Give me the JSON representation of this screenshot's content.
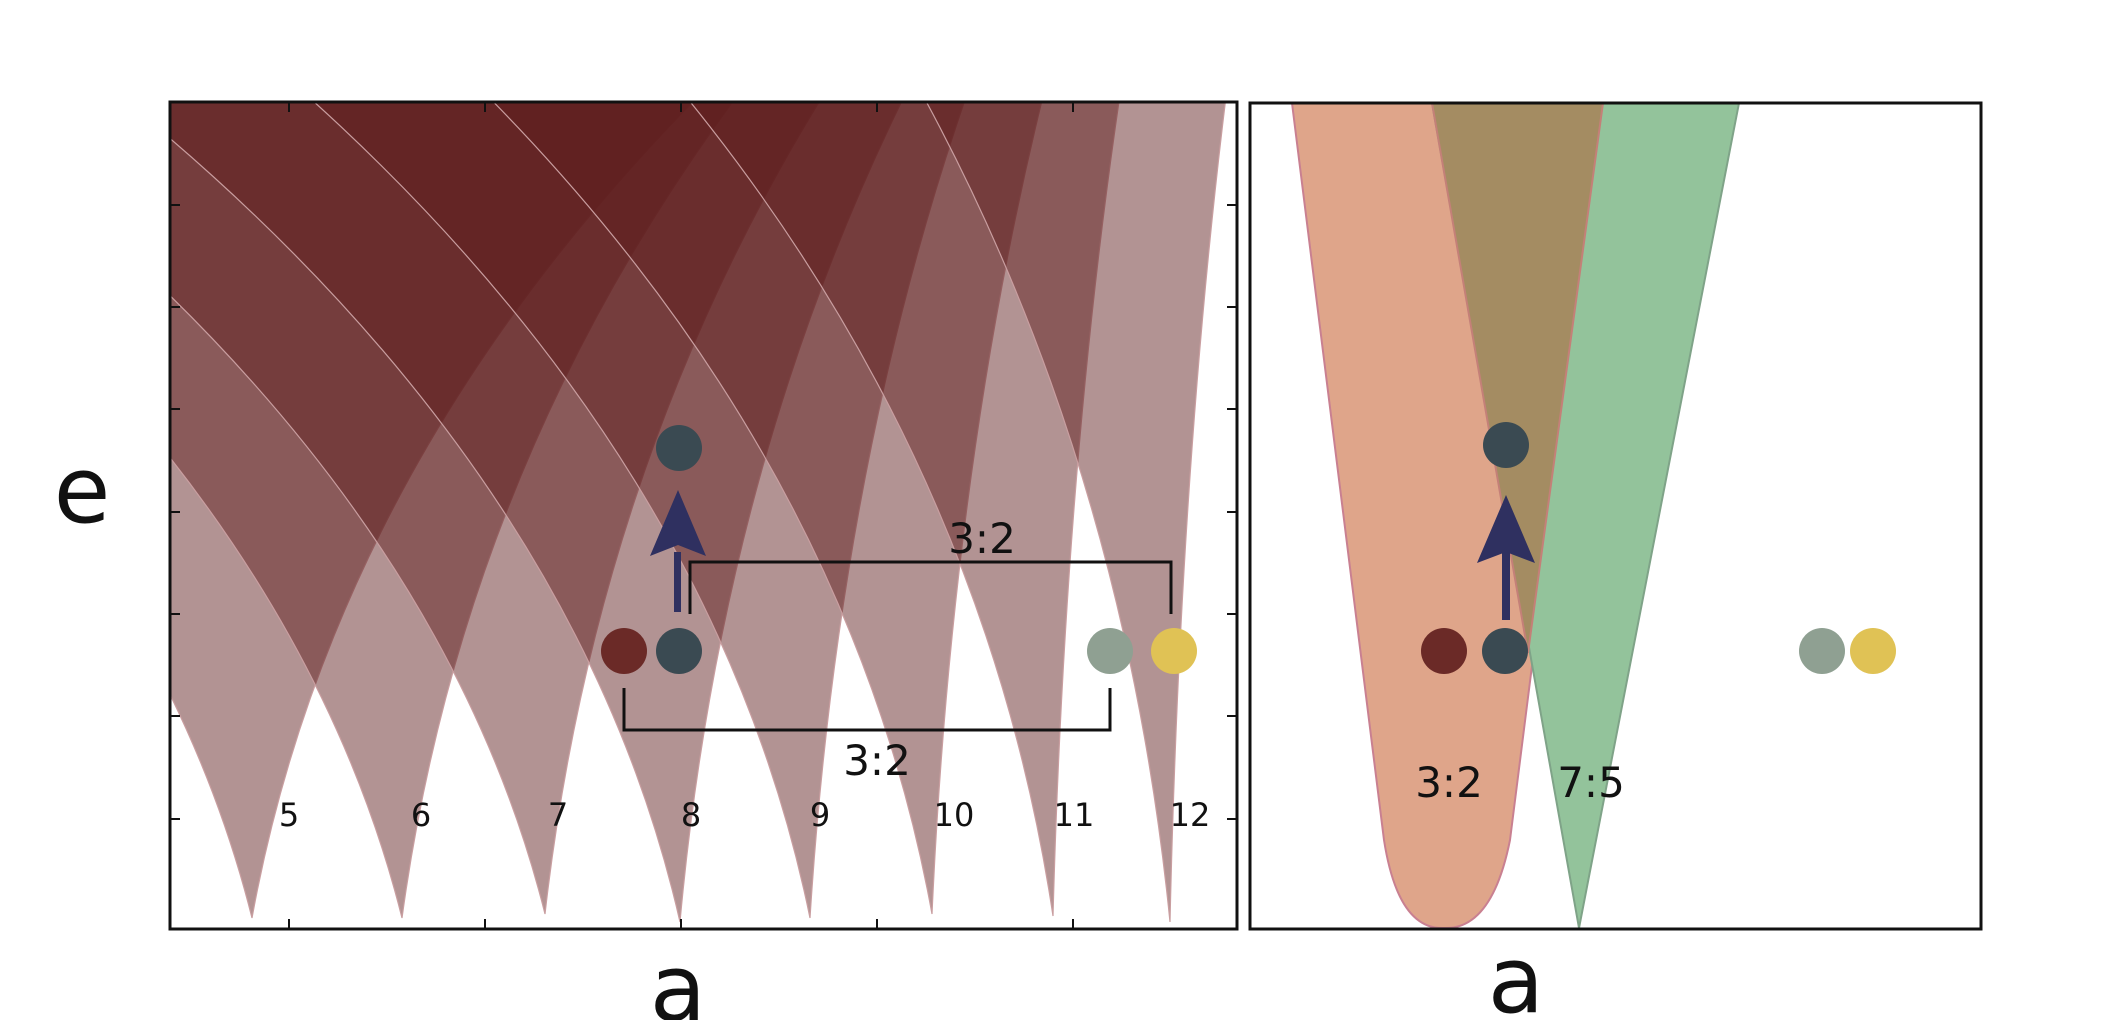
{
  "left_panel": {
    "y_axis_label": "e",
    "x_axis_label": "a",
    "resonance_labels": [
      "5",
      "6",
      "7",
      "8",
      "9",
      "10",
      "11",
      "12"
    ],
    "upper_bracket_label": "3:2",
    "lower_bracket_label": "3:2",
    "regions": [
      {
        "name": "resonance-5",
        "order": 5
      },
      {
        "name": "resonance-6",
        "order": 6
      },
      {
        "name": "resonance-7",
        "order": 7
      },
      {
        "name": "resonance-8",
        "order": 8
      },
      {
        "name": "resonance-9",
        "order": 9
      },
      {
        "name": "resonance-10",
        "order": 10
      },
      {
        "name": "resonance-11",
        "order": 11
      },
      {
        "name": "resonance-12",
        "order": 12
      }
    ],
    "planets": [
      {
        "name": "planet-red",
        "color": "#6b2a27"
      },
      {
        "name": "planet-dark-start",
        "color": "#3a4a52"
      },
      {
        "name": "planet-dark-excited",
        "color": "#3a4a52"
      },
      {
        "name": "planet-gray",
        "color": "#8fa092"
      },
      {
        "name": "planet-yellow",
        "color": "#e0c255"
      }
    ]
  },
  "right_panel": {
    "x_axis_label": "a",
    "region_labels": [
      "3:2",
      "7:5"
    ],
    "region_colors": {
      "3:2": "#dfa58a",
      "7:5": "#93c39b",
      "overlap": "#a48c62"
    },
    "planets": [
      {
        "name": "planet-red",
        "color": "#6b2a27"
      },
      {
        "name": "planet-dark-start",
        "color": "#3a4a52"
      },
      {
        "name": "planet-dark-excited",
        "color": "#3a4a52"
      },
      {
        "name": "planet-gray",
        "color": "#8fa092"
      },
      {
        "name": "planet-yellow",
        "color": "#e0c255"
      }
    ]
  },
  "colors": {
    "resonance_fill": "#5e1d1d",
    "arrow": "#2f3060",
    "frame": "#111111"
  }
}
